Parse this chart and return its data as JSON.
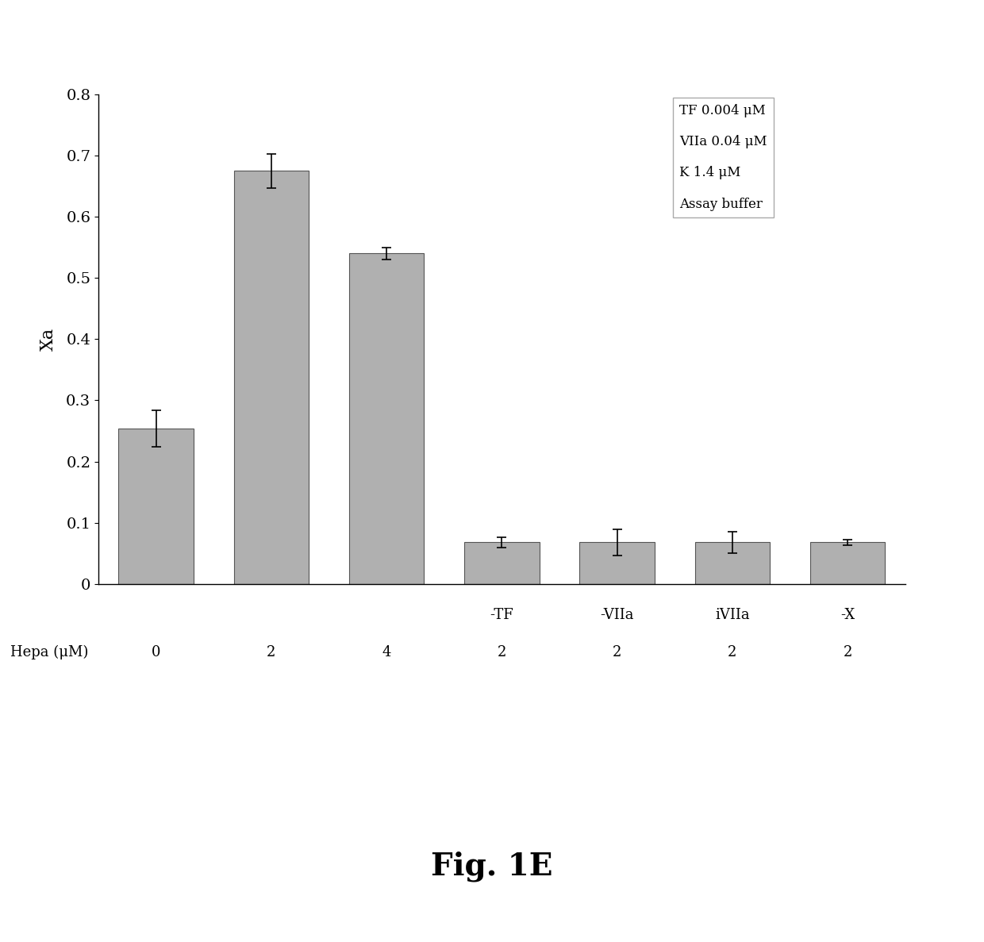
{
  "bar_values": [
    0.254,
    0.675,
    0.54,
    0.068,
    0.068,
    0.068,
    0.068
  ],
  "bar_errors": [
    0.03,
    0.028,
    0.01,
    0.008,
    0.022,
    0.018,
    0.005
  ],
  "bar_color": "#b0b0b0",
  "bar_edge_color": "#555555",
  "ylim": [
    0,
    0.8
  ],
  "yticks": [
    0,
    0.1,
    0.2,
    0.3,
    0.4,
    0.5,
    0.6,
    0.7,
    0.8
  ],
  "ylabel": "Xa",
  "x_labels_row1": [
    "",
    "",
    "",
    "-TF",
    "-VIIa",
    "iVIIa",
    "-X"
  ],
  "x_labels_row2": [
    "0",
    "2",
    "4",
    "2",
    "2",
    "2",
    "2"
  ],
  "x_label_prefix": "Hepa (μM)",
  "legend_lines": [
    "TF 0.004 μM",
    "VIIa 0.04 μM",
    "K 1.4 μM",
    "Assay buffer"
  ],
  "figure_title": "Fig. 1E",
  "title_fontsize": 28,
  "background_color": "#ffffff"
}
